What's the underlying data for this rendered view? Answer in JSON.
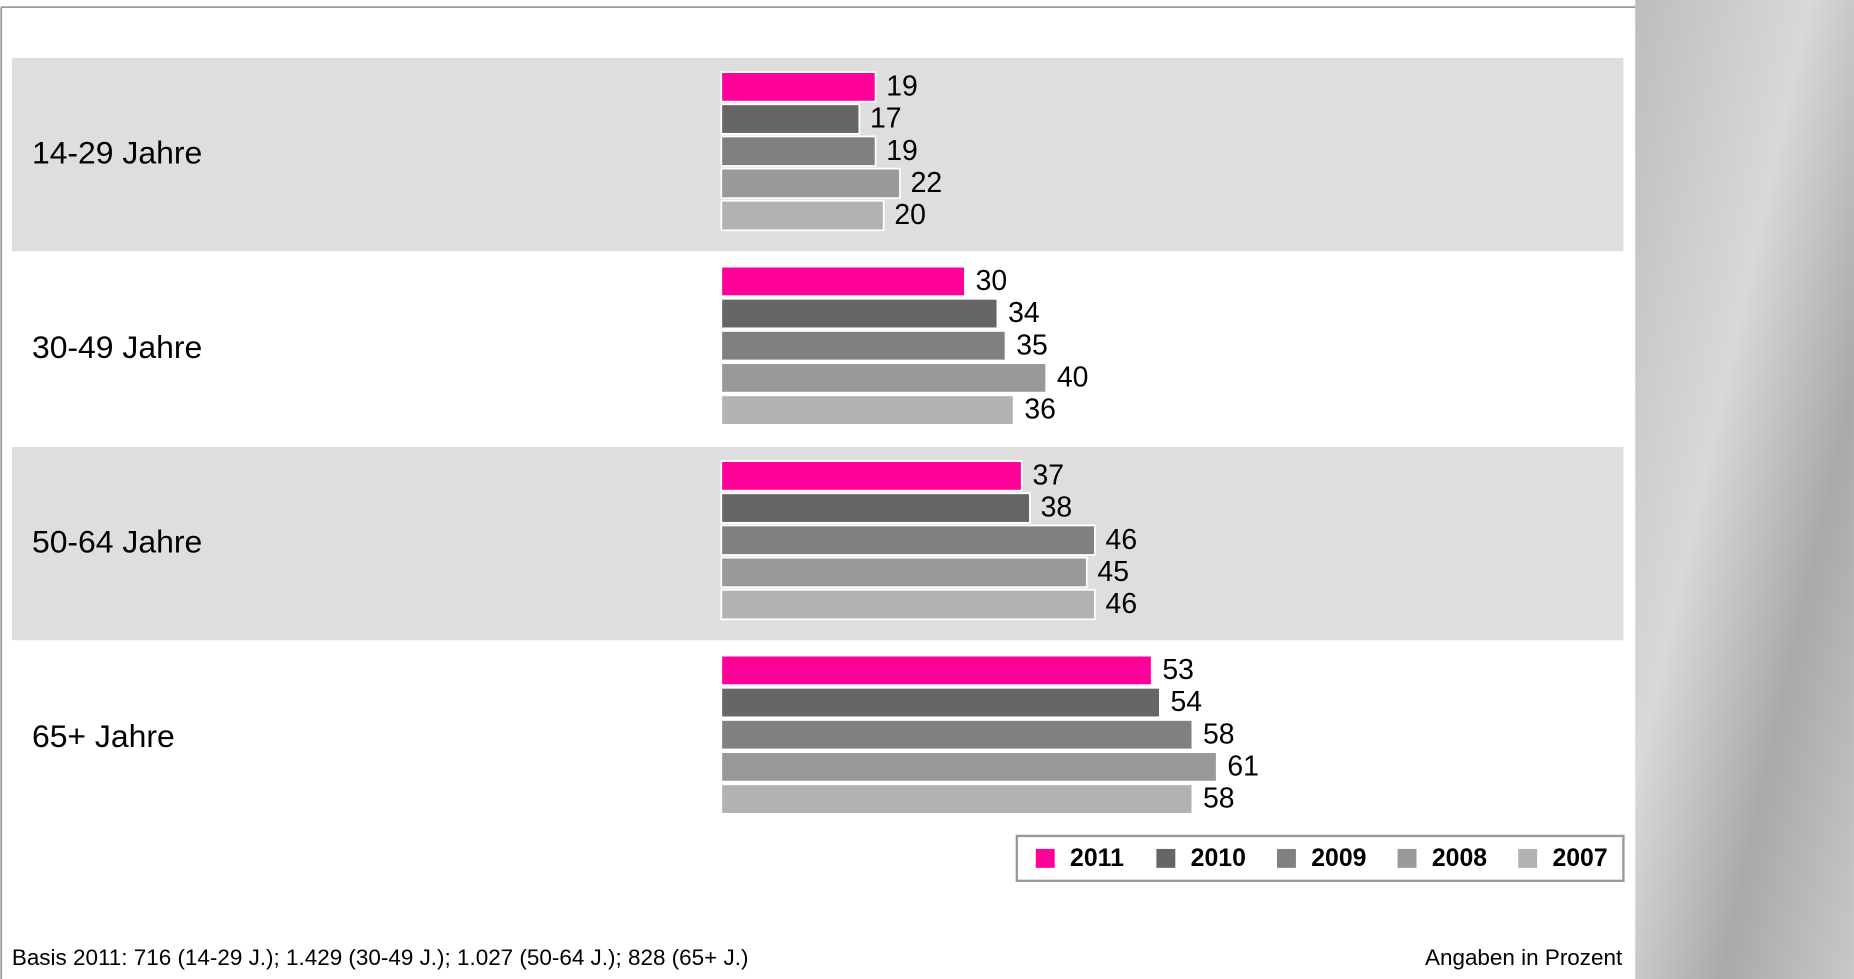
{
  "chart_data": {
    "type": "bar",
    "orientation": "horizontal",
    "categories": [
      "14-29 Jahre",
      "30-49 Jahre",
      "50-64 Jahre",
      "65+ Jahre"
    ],
    "series": [
      {
        "name": "2011",
        "color": "#ff0099",
        "values": [
          19,
          30,
          37,
          53
        ]
      },
      {
        "name": "2010",
        "color": "#666666",
        "values": [
          17,
          34,
          38,
          54
        ]
      },
      {
        "name": "2009",
        "color": "#808080",
        "values": [
          19,
          35,
          46,
          58
        ]
      },
      {
        "name": "2008",
        "color": "#999999",
        "values": [
          22,
          40,
          45,
          61
        ]
      },
      {
        "name": "2007",
        "color": "#b2b2b2",
        "values": [
          20,
          36,
          46,
          58
        ]
      }
    ],
    "legend": "bottom-right",
    "footnote": "Basis 2011: 716 (14-29 J.); 1.429 (30-49 J.); 1.027 (50-64 J.); 828 (65+ J.)",
    "unit_note": "Angaben in Prozent"
  }
}
